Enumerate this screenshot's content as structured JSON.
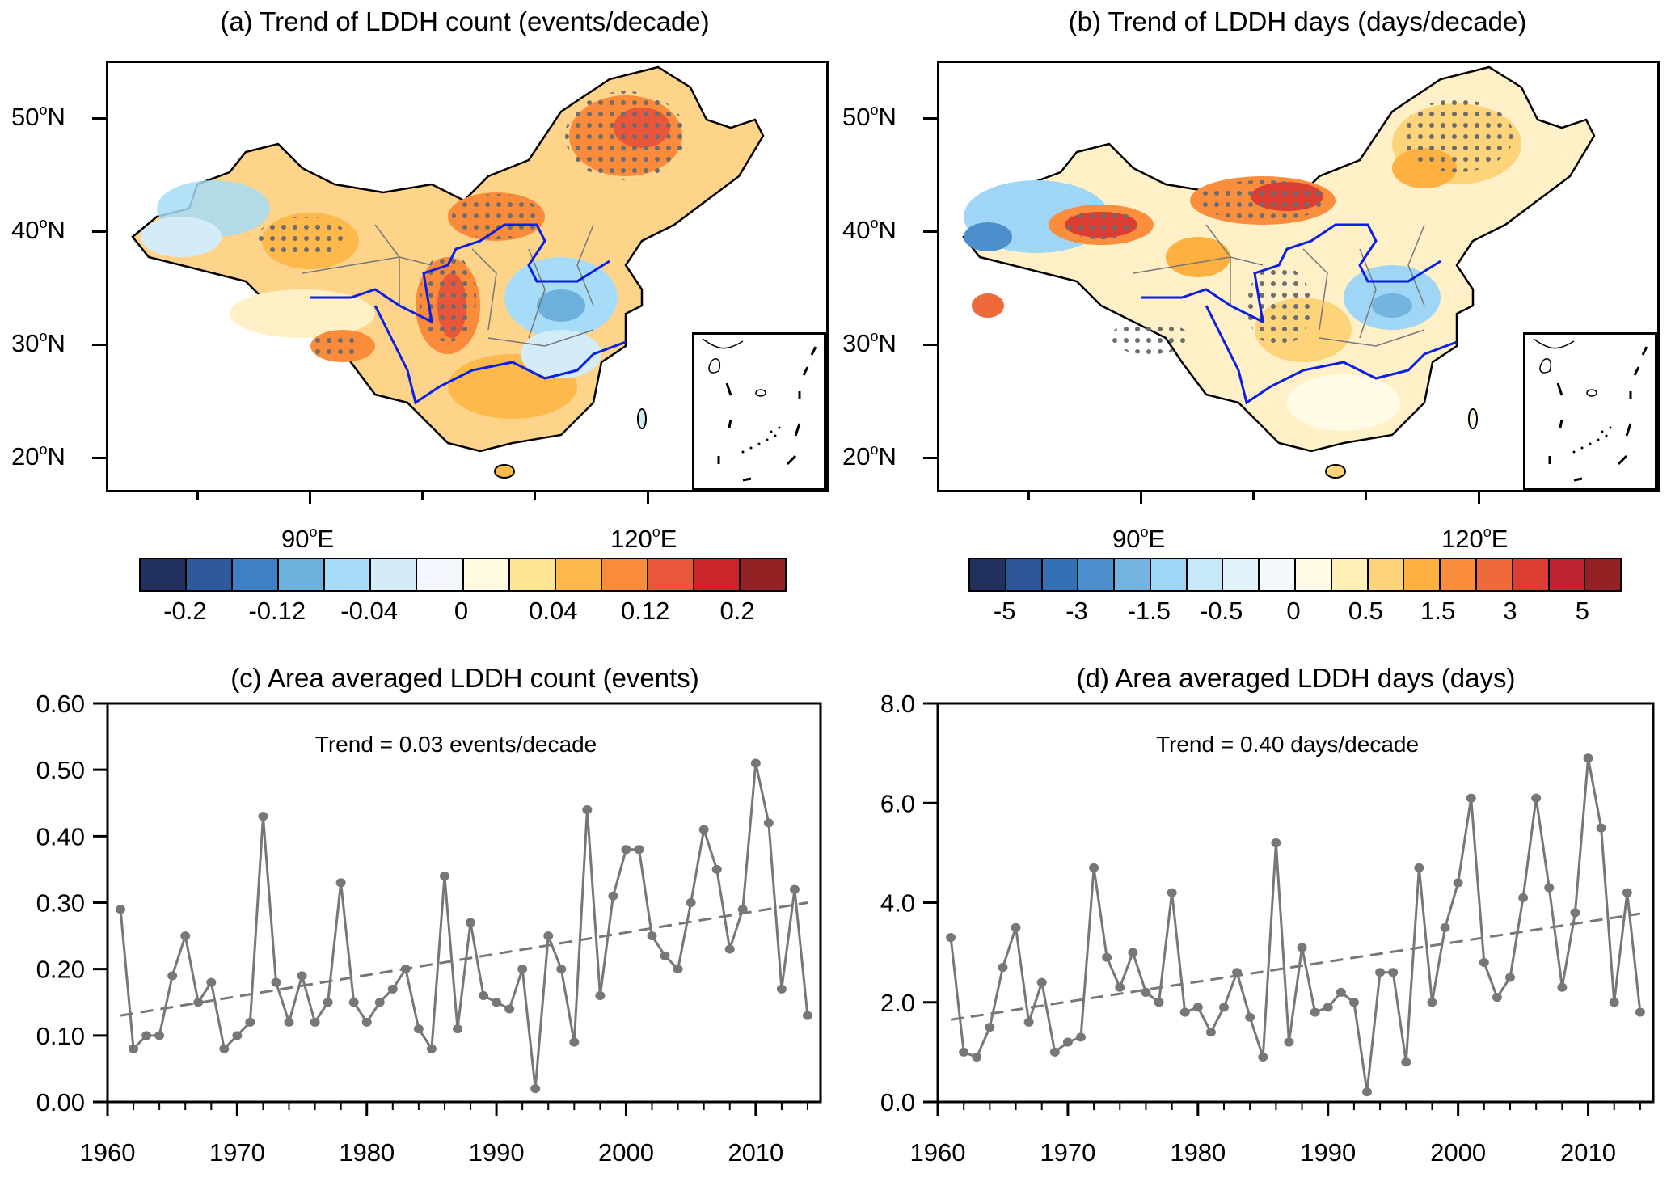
{
  "panels": {
    "a": {
      "title": "(a) Trend of LDDH count (events/decade)",
      "lat_labels": [
        "50",
        "40",
        "30",
        "20"
      ],
      "lat_suffix": "N",
      "lon_labels": [
        "90",
        "120"
      ],
      "lon_suffix": "E",
      "colorbar": {
        "colors": [
          "#22305f",
          "#2e5a9c",
          "#3f7fc4",
          "#6eb0dd",
          "#a6dcf7",
          "#d3ecf8",
          "#f2f8fe",
          "#fffae0",
          "#fee595",
          "#feb94c",
          "#fa8b3b",
          "#e9573a",
          "#c9252b",
          "#942225"
        ],
        "labels": [
          "-0.2",
          "-0.12",
          "-0.04",
          "0",
          "0.04",
          "0.12",
          "0.2"
        ]
      }
    },
    "b": {
      "title": "(b) Trend of LDDH days (days/decade)",
      "lat_labels": [
        "50",
        "40",
        "30",
        "20"
      ],
      "lat_suffix": "N",
      "lon_labels": [
        "90",
        "120"
      ],
      "lon_suffix": "E",
      "colorbar": {
        "colors": [
          "#22305f",
          "#2c5597",
          "#3570b4",
          "#4d8fcc",
          "#74b4e0",
          "#a0d6f5",
          "#c6e8f8",
          "#e3f3fb",
          "#f4f9fe",
          "#fffbe6",
          "#fff0b8",
          "#fed47a",
          "#feb040",
          "#fa8e3c",
          "#ef6a3a",
          "#dc3d33",
          "#bd2430",
          "#942225"
        ],
        "labels": [
          "-5",
          "-3",
          "-1.5",
          "-0.5",
          "0",
          "0.5",
          "1.5",
          "3",
          "5"
        ]
      }
    },
    "c": {
      "title": "(c) Area averaged LDDH count (events)",
      "annotation": "Trend =  0.03 events/decade"
    },
    "d": {
      "title": "(d) Area averaged LDDH days (days)",
      "annotation": "Trend =  0.40 days/decade"
    }
  },
  "chart_data": [
    {
      "id": "c",
      "type": "line",
      "title": "(c) Area averaged LDDH count (events)",
      "xlabel": "",
      "ylabel": "",
      "xlim": [
        1960,
        2015
      ],
      "ylim": [
        0,
        0.6
      ],
      "xticks": [
        1960,
        1970,
        1980,
        1990,
        2000,
        2010
      ],
      "xtick_labels": [
        "1960",
        "1970",
        "1980",
        "1990",
        "2000",
        "2010"
      ],
      "yticks": [
        0,
        0.1,
        0.2,
        0.3,
        0.4,
        0.5,
        0.6
      ],
      "ytick_labels": [
        "0.00",
        "0.10",
        "0.20",
        "0.30",
        "0.40",
        "0.50",
        "0.60"
      ],
      "grid": false,
      "annotation": "Trend =  0.03 events/decade",
      "x": [
        1961,
        1962,
        1963,
        1964,
        1965,
        1966,
        1967,
        1968,
        1969,
        1970,
        1971,
        1972,
        1973,
        1974,
        1975,
        1976,
        1977,
        1978,
        1979,
        1980,
        1981,
        1982,
        1983,
        1984,
        1985,
        1986,
        1987,
        1988,
        1989,
        1990,
        1991,
        1992,
        1993,
        1994,
        1995,
        1996,
        1997,
        1998,
        1999,
        2000,
        2001,
        2002,
        2003,
        2004,
        2005,
        2006,
        2007,
        2008,
        2009,
        2010,
        2011,
        2012,
        2013,
        2014
      ],
      "series": [
        {
          "name": "Area averaged LDDH count",
          "color": "#777777",
          "style": "solid-markers",
          "values": [
            0.29,
            0.08,
            0.1,
            0.1,
            0.19,
            0.25,
            0.15,
            0.18,
            0.08,
            0.1,
            0.12,
            0.43,
            0.18,
            0.12,
            0.19,
            0.12,
            0.15,
            0.33,
            0.15,
            0.12,
            0.15,
            0.17,
            0.2,
            0.11,
            0.08,
            0.34,
            0.11,
            0.27,
            0.16,
            0.15,
            0.14,
            0.2,
            0.02,
            0.25,
            0.2,
            0.09,
            0.44,
            0.16,
            0.31,
            0.38,
            0.38,
            0.25,
            0.22,
            0.2,
            0.3,
            0.41,
            0.35,
            0.23,
            0.29,
            0.51,
            0.42,
            0.17,
            0.32,
            0.13
          ]
        },
        {
          "name": "Linear trend",
          "color": "#777777",
          "style": "dashed",
          "x": [
            1961,
            2014
          ],
          "values": [
            0.13,
            0.3
          ]
        }
      ]
    },
    {
      "id": "d",
      "type": "line",
      "title": "(d) Area averaged LDDH days (days)",
      "xlabel": "",
      "ylabel": "",
      "xlim": [
        1960,
        2015
      ],
      "ylim": [
        0,
        8
      ],
      "xticks": [
        1960,
        1970,
        1980,
        1990,
        2000,
        2010
      ],
      "xtick_labels": [
        "1960",
        "1970",
        "1980",
        "1990",
        "2000",
        "2010"
      ],
      "yticks": [
        0,
        2,
        4,
        6,
        8
      ],
      "ytick_labels": [
        "0.0",
        "2.0",
        "4.0",
        "6.0",
        "8.0"
      ],
      "grid": false,
      "annotation": "Trend =  0.40 days/decade",
      "x": [
        1961,
        1962,
        1963,
        1964,
        1965,
        1966,
        1967,
        1968,
        1969,
        1970,
        1971,
        1972,
        1973,
        1974,
        1975,
        1976,
        1977,
        1978,
        1979,
        1980,
        1981,
        1982,
        1983,
        1984,
        1985,
        1986,
        1987,
        1988,
        1989,
        1990,
        1991,
        1992,
        1993,
        1994,
        1995,
        1996,
        1997,
        1998,
        1999,
        2000,
        2001,
        2002,
        2003,
        2004,
        2005,
        2006,
        2007,
        2008,
        2009,
        2010,
        2011,
        2012,
        2013,
        2014
      ],
      "series": [
        {
          "name": "Area averaged LDDH days",
          "color": "#777777",
          "style": "solid-markers",
          "values": [
            3.3,
            1.0,
            0.9,
            1.5,
            2.7,
            3.5,
            1.6,
            2.4,
            1.0,
            1.2,
            1.3,
            4.7,
            2.9,
            2.3,
            3.0,
            2.2,
            2.0,
            4.2,
            1.8,
            1.9,
            1.4,
            1.9,
            2.6,
            1.7,
            0.9,
            5.2,
            1.2,
            3.1,
            1.8,
            1.9,
            2.2,
            2.0,
            0.2,
            2.6,
            2.6,
            0.8,
            4.7,
            2.0,
            3.5,
            4.4,
            6.1,
            2.8,
            2.1,
            2.5,
            4.1,
            6.1,
            4.3,
            2.3,
            3.8,
            6.9,
            5.5,
            2.0,
            4.2,
            1.8
          ]
        },
        {
          "name": "Linear trend",
          "color": "#777777",
          "style": "dashed",
          "x": [
            1961,
            2014
          ],
          "values": [
            1.65,
            3.78
          ]
        }
      ]
    }
  ]
}
